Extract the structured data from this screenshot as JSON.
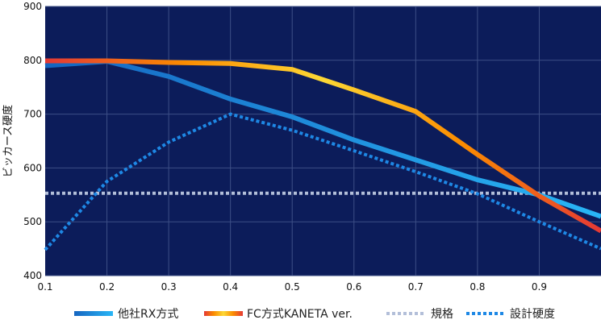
{
  "chart_data": {
    "type": "line",
    "title": "",
    "xlabel": "",
    "ylabel": "ビッカース硬度",
    "xlim": [
      0.1,
      1.0
    ],
    "ylim": [
      400,
      900
    ],
    "x_ticks": [
      "0.1",
      "0.2",
      "0.3",
      "0.4",
      "0.5",
      "0.6",
      "0.7",
      "0.8",
      "0.9"
    ],
    "y_ticks": [
      "900",
      "800",
      "700",
      "600",
      "500",
      "400"
    ],
    "grid": true,
    "legend_position": "bottom",
    "background_color": "#0c1c5a",
    "series": [
      {
        "name": "他社RX方式",
        "style": "solid",
        "colors": [
          "#1565c0",
          "#29b6f6"
        ],
        "x": [
          0.1,
          0.2,
          0.3,
          0.4,
          0.5,
          0.6,
          0.7,
          0.8,
          0.9,
          1.0
        ],
        "y": [
          790,
          798,
          770,
          728,
          695,
          652,
          615,
          578,
          550,
          510
        ]
      },
      {
        "name": "FC方式KANETA ver.",
        "style": "solid",
        "colors": [
          "#e53935",
          "#fb8c00",
          "#fdd835",
          "#fb8c00",
          "#e53935"
        ],
        "x": [
          0.1,
          0.2,
          0.3,
          0.4,
          0.5,
          0.6,
          0.7,
          0.8,
          0.9,
          1.0
        ],
        "y": [
          799,
          799,
          796,
          794,
          783,
          745,
          705,
          625,
          548,
          483
        ]
      },
      {
        "name": "規格",
        "style": "dotted",
        "colors": [
          "#b3bfd9"
        ],
        "x": [
          0.1,
          1.0
        ],
        "y": [
          553,
          553
        ]
      },
      {
        "name": "設計硬度",
        "style": "dotted",
        "colors": [
          "#1e88e5"
        ],
        "x": [
          0.1,
          0.2,
          0.3,
          0.4,
          0.5,
          0.6,
          0.7,
          0.8,
          0.9,
          1.0
        ],
        "y": [
          448,
          575,
          648,
          700,
          670,
          632,
          593,
          552,
          500,
          450
        ]
      }
    ]
  }
}
